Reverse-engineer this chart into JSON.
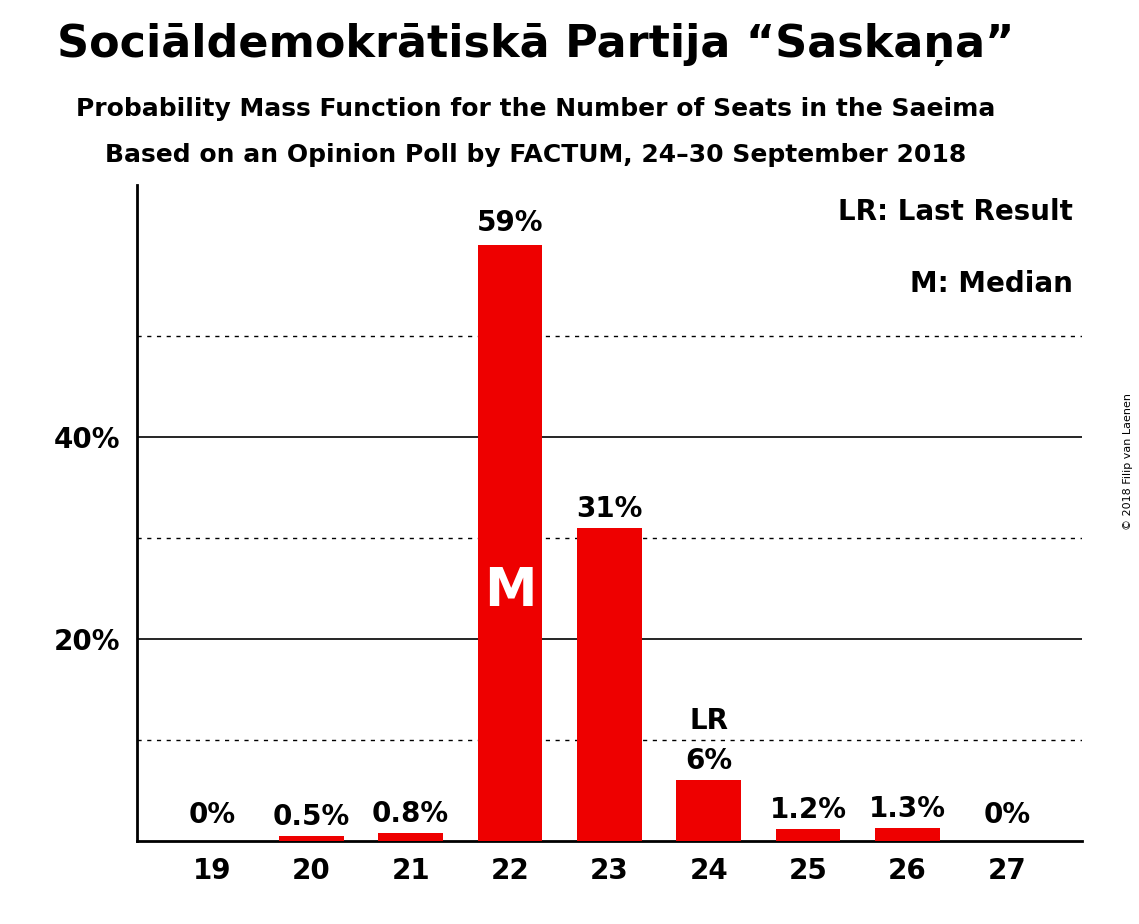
{
  "title": "Sociāldemokrātiskā Partija “Saskaņa”",
  "subtitle1": "Probability Mass Function for the Number of Seats in the Saeima",
  "subtitle2": "Based on an Opinion Poll by FACTUM, 24–30 September 2018",
  "copyright": "© 2018 Filip van Laenen",
  "categories": [
    19,
    20,
    21,
    22,
    23,
    24,
    25,
    26,
    27
  ],
  "values": [
    0.0,
    0.5,
    0.8,
    59.0,
    31.0,
    6.0,
    1.2,
    1.3,
    0.0
  ],
  "bar_color": "#ee0000",
  "bar_labels": [
    "0%",
    "0.5%",
    "0.8%",
    "59%",
    "31%",
    "6%",
    "1.2%",
    "1.3%",
    "0%"
  ],
  "median_seat": 22,
  "lr_seat": 24,
  "ylim": [
    0,
    65
  ],
  "solid_gridlines": [
    20,
    40
  ],
  "dotted_gridlines": [
    10,
    30,
    50
  ],
  "background_color": "#ffffff",
  "title_fontsize": 32,
  "subtitle_fontsize": 18,
  "label_fontsize": 20,
  "tick_fontsize": 20,
  "ytick_values": [
    20,
    40
  ],
  "ytick_dotted": [
    10,
    30,
    50
  ],
  "ytick_labels_pos": [
    20,
    40
  ],
  "ytick_labels_text": [
    "20%",
    "40%"
  ]
}
